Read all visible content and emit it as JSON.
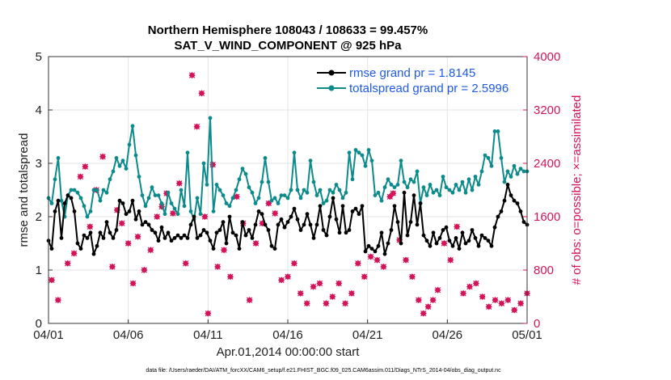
{
  "chart_data": {
    "type": "line",
    "title": "Northern Hemisphere 108043 / 108633 = 99.457%",
    "subtitle": "SAT_V_WIND_COMPONENT @ 925 hPa",
    "xlabel": "Apr.01,2014 00:00:00 start",
    "ylabel": "rmse and totalspread",
    "ylabel_right": "# of obs: o=possible; ×=assimilated",
    "xlim": [
      0,
      30
    ],
    "ylim": [
      0,
      5
    ],
    "ylim_right": [
      0,
      4000
    ],
    "x_ticks": [
      0,
      5,
      10,
      15,
      20,
      25,
      30
    ],
    "x_tick_labels": [
      "04/01",
      "04/06",
      "04/11",
      "04/16",
      "04/21",
      "04/26",
      "05/01"
    ],
    "y_ticks": [
      0,
      1,
      2,
      3,
      4,
      5
    ],
    "y_tick_labels": [
      "0",
      "1",
      "2",
      "3",
      "4",
      "5"
    ],
    "y_ticks_right": [
      0,
      800,
      1600,
      2400,
      3200,
      4000
    ],
    "y_tick_labels_right": [
      "0",
      "800",
      "1600",
      "2400",
      "3200",
      "4000"
    ],
    "grid": true,
    "legend_position": "top-right",
    "footnote": "data file: /Users/raeder/DAI/ATM_forcXX/CAM6_setup/f.e21.FHIST_BGC.f09_025.CAM6assim.011/Diags_NTrS_2014-04/obs_diag_output.nc",
    "colors": {
      "rmse": "#000000",
      "spread": "#0e8a8a",
      "obs": "#d4145a",
      "legend_text": "#1e5ae6"
    },
    "series": [
      {
        "name": "rmse grand pr = 1.8145",
        "axis": "left",
        "values": [
          1.55,
          1.4,
          2.1,
          2.3,
          1.6,
          2.25,
          2.4,
          2.35,
          2.1,
          1.5,
          1.4,
          1.65,
          1.6,
          1.7,
          1.3,
          1.45,
          1.7,
          1.6,
          1.9,
          1.7,
          1.6,
          1.75,
          2.3,
          2.25,
          2.05,
          2.1,
          2.3,
          1.95,
          2.1,
          1.85,
          1.9,
          1.85,
          1.75,
          1.7,
          1.55,
          1.8,
          1.6,
          1.7,
          1.55,
          1.6,
          1.65,
          1.6,
          1.65,
          1.6,
          1.85,
          2.0,
          1.6,
          1.65,
          1.75,
          1.7,
          1.55,
          1.4,
          1.7,
          1.75,
          1.9,
          1.5,
          2.0,
          1.7,
          1.65,
          1.4,
          1.9,
          1.65,
          1.75,
          1.6,
          1.85,
          2.1,
          2.05,
          1.85,
          1.75,
          1.45,
          1.4,
          1.85,
          1.95,
          1.8,
          1.9,
          2.0,
          2.15,
          1.95,
          1.75,
          1.85,
          2.05,
          1.85,
          1.6,
          1.85,
          2.2,
          1.75,
          1.65,
          2.0,
          2.35,
          1.95,
          1.7,
          2.2,
          1.7,
          1.75,
          2.1,
          2.15,
          2.05,
          2.2,
          1.35,
          1.45,
          1.4,
          1.35,
          1.45,
          1.7,
          1.3,
          1.5,
          1.75,
          2.2,
          1.9,
          1.5,
          2.45,
          1.65,
          1.9,
          2.4,
          1.85,
          2.25,
          1.65,
          1.55,
          1.45,
          1.7,
          1.5,
          1.6,
          1.75,
          1.8,
          1.55,
          1.45,
          1.6,
          1.4,
          1.7,
          1.5,
          1.55,
          1.75,
          1.6,
          1.45,
          1.65,
          1.6,
          1.55,
          1.45,
          1.8,
          2.0,
          2.1,
          2.3,
          2.6,
          2.4,
          2.3,
          2.25,
          2.1,
          1.9,
          1.85
        ]
      },
      {
        "name": "totalspread grand pr = 2.5996",
        "axis": "left",
        "values": [
          2.35,
          2.25,
          2.7,
          3.1,
          2.3,
          2.0,
          2.4,
          2.5,
          2.5,
          2.45,
          2.35,
          2.2,
          2.0,
          2.1,
          2.5,
          2.5,
          2.3,
          2.5,
          2.45,
          2.7,
          2.85,
          3.1,
          2.95,
          3.05,
          2.9,
          3.35,
          3.7,
          3.15,
          2.75,
          2.4,
          2.2,
          2.35,
          2.55,
          2.4,
          2.4,
          2.25,
          2.05,
          2.45,
          2.25,
          2.15,
          2.05,
          2.5,
          2.2,
          3.2,
          2.1,
          1.95,
          2.35,
          2.05,
          3.0,
          2.6,
          3.85,
          2.1,
          2.6,
          2.5,
          2.4,
          2.25,
          2.2,
          2.35,
          2.5,
          2.7,
          2.9,
          2.8,
          2.55,
          2.45,
          2.25,
          2.35,
          2.65,
          3.1,
          2.65,
          2.3,
          2.35,
          2.25,
          2.4,
          2.4,
          2.35,
          2.5,
          3.2,
          2.5,
          2.35,
          2.5,
          2.45,
          3.05,
          2.65,
          2.4,
          2.5,
          2.25,
          2.3,
          2.5,
          2.45,
          2.6,
          2.5,
          2.35,
          2.45,
          3.2,
          2.7,
          3.25,
          3.2,
          3.15,
          2.95,
          3.25,
          3.05,
          2.4,
          2.45,
          2.3,
          2.55,
          2.7,
          2.6,
          2.55,
          2.6,
          3.05,
          2.65,
          2.55,
          2.7,
          2.65,
          2.85,
          2.25,
          2.55,
          2.4,
          2.6,
          2.45,
          2.5,
          2.4,
          2.75,
          2.55,
          2.5,
          2.45,
          2.6,
          2.5,
          2.65,
          2.45,
          2.7,
          2.5,
          2.75,
          2.6,
          2.85,
          3.15,
          3.1,
          2.95,
          3.6,
          3.6,
          3.1,
          2.65,
          2.85,
          2.75,
          2.95,
          2.8,
          2.9,
          2.85,
          2.85
        ]
      },
      {
        "name": "assimilated observations",
        "axis": "right",
        "x": [
          0.2,
          0.6,
          1.2,
          1.6,
          2.0,
          2.3,
          2.6,
          3.0,
          3.4,
          4.0,
          4.3,
          4.6,
          5.0,
          5.3,
          5.6,
          6.0,
          6.4,
          6.8,
          7.1,
          7.4,
          7.8,
          8.2,
          8.6,
          9.0,
          9.3,
          9.6,
          9.8,
          10.0,
          10.3,
          10.6,
          11.0,
          11.4,
          11.8,
          12.2,
          12.6,
          13.0,
          13.4,
          13.8,
          14.2,
          14.6,
          15.0,
          15.4,
          15.8,
          16.2,
          16.6,
          17.0,
          17.4,
          17.8,
          18.2,
          18.6,
          19.0,
          19.4,
          19.8,
          20.2,
          20.6,
          21.0,
          21.4,
          21.6,
          22.0,
          22.4,
          22.8,
          23.2,
          23.5,
          23.8,
          24.1,
          24.4,
          24.8,
          25.2,
          25.6,
          26.0,
          26.4,
          26.8,
          27.2,
          27.6,
          28.0,
          28.4,
          28.8,
          29.2,
          29.6,
          30.0
        ],
        "values": [
          650,
          350,
          900,
          1050,
          2200,
          2350,
          1450,
          2000,
          2500,
          850,
          1700,
          1500,
          1200,
          600,
          1300,
          800,
          1100,
          1600,
          1750,
          1950,
          1650,
          2100,
          900,
          3720,
          2950,
          3450,
          1600,
          150,
          2380,
          850,
          1100,
          700,
          1900,
          1500,
          350,
          1200,
          1500,
          1800,
          1650,
          650,
          700,
          900,
          450,
          300,
          550,
          600,
          300,
          400,
          600,
          300,
          450,
          900,
          700,
          1000,
          950,
          850,
          1900,
          1950,
          1250,
          950,
          700,
          350,
          150,
          250,
          350,
          500,
          1200,
          950,
          1450,
          450,
          550,
          600,
          400,
          250,
          350,
          300,
          350,
          200,
          300,
          450
        ]
      }
    ]
  }
}
